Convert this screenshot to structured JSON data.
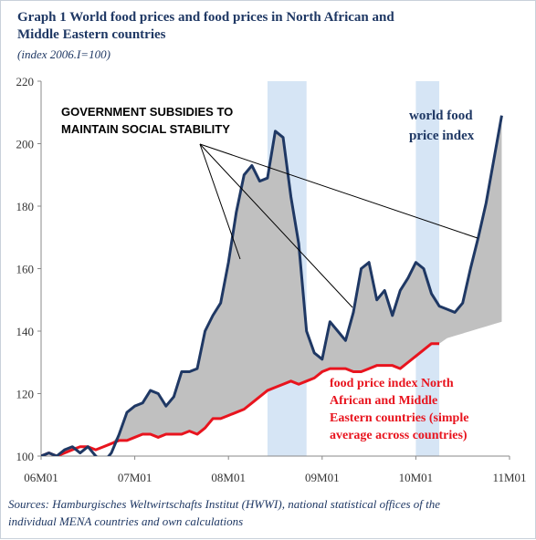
{
  "header": {
    "title_line1": "Graph 1  World food prices and food prices in North African and",
    "title_line2": "Middle Eastern countries",
    "subtitle": "(index 2006.I=100)"
  },
  "source": {
    "line1": "Sources: Hamburgisches Weltwirtschafts Institut (HWWI), national statistical offices of the",
    "line2": "individual MENA countries and own calculations"
  },
  "annotations": {
    "subsidies_line1": "GOVERNMENT SUBSIDIES TO",
    "subsidies_line2": "MAINTAIN SOCIAL STABILITY",
    "world_line1": "world food",
    "world_line2": "price index",
    "mena_line1": "food price index North",
    "mena_line2": "African and Middle",
    "mena_line3": "Eastern countries (simple",
    "mena_line4": "average across countries)"
  },
  "colors": {
    "world": "#1f3864",
    "mena": "#e8141e",
    "gap_fill": "#c0c0c0",
    "shade": "#cfe0f3"
  },
  "chart_data": {
    "type": "line",
    "title": "Graph 1  World food prices and food prices in North African and Middle Eastern countries",
    "subtitle": "(index 2006.I=100)",
    "x_unit": "month",
    "xlim": [
      "2006-01",
      "2011-01"
    ],
    "ylim": [
      100,
      220
    ],
    "y_ticks": [
      100,
      120,
      140,
      160,
      180,
      200,
      220
    ],
    "x_ticks": [
      "06M01",
      "07M01",
      "08M01",
      "09M01",
      "10M01",
      "11M01"
    ],
    "x_tick_positions": [
      "2006-01",
      "2007-01",
      "2008-01",
      "2009-01",
      "2010-01",
      "2011-01"
    ],
    "grid": false,
    "shaded_periods": [
      {
        "start": "2008-06",
        "end": "2008-11"
      },
      {
        "start": "2010-01",
        "end": "2010-04"
      }
    ],
    "series": [
      {
        "name": "world food price index",
        "x": [
          "2006-01",
          "2006-02",
          "2006-03",
          "2006-04",
          "2006-05",
          "2006-06",
          "2006-07",
          "2006-08",
          "2006-09",
          "2006-10",
          "2006-11",
          "2006-12",
          "2007-01",
          "2007-02",
          "2007-03",
          "2007-04",
          "2007-05",
          "2007-06",
          "2007-07",
          "2007-08",
          "2007-09",
          "2007-10",
          "2007-11",
          "2007-12",
          "2008-01",
          "2008-02",
          "2008-03",
          "2008-04",
          "2008-05",
          "2008-06",
          "2008-07",
          "2008-08",
          "2008-09",
          "2008-10",
          "2008-11",
          "2008-12",
          "2009-01",
          "2009-02",
          "2009-03",
          "2009-04",
          "2009-05",
          "2009-06",
          "2009-07",
          "2009-08",
          "2009-09",
          "2009-10",
          "2009-11",
          "2009-12",
          "2010-01",
          "2010-02",
          "2010-03",
          "2010-04",
          "2010-05",
          "2010-06",
          "2010-07",
          "2010-08",
          "2010-09",
          "2010-10"
        ],
        "values": [
          100,
          101,
          100,
          102,
          103,
          101,
          103,
          100,
          98,
          101,
          107,
          114,
          116,
          117,
          121,
          120,
          116,
          119,
          127,
          127,
          128,
          140,
          145,
          149,
          162,
          178,
          190,
          193,
          188,
          189,
          204,
          202,
          183,
          168,
          140,
          133,
          131,
          143,
          140,
          137,
          146,
          160,
          162,
          150,
          153,
          145,
          153,
          157,
          162,
          160,
          152,
          148,
          147,
          146,
          149,
          160,
          170,
          181
        ],
        "values_tail": {
          "x": [
            "2010-11",
            "2010-12"
          ],
          "values": [
            195,
            209
          ]
        }
      },
      {
        "name": "food price index North African and Middle Eastern countries (simple average across countries)",
        "x": [
          "2006-01",
          "2006-02",
          "2006-03",
          "2006-04",
          "2006-05",
          "2006-06",
          "2006-07",
          "2006-08",
          "2006-09",
          "2006-10",
          "2006-11",
          "2006-12",
          "2007-01",
          "2007-02",
          "2007-03",
          "2007-04",
          "2007-05",
          "2007-06",
          "2007-07",
          "2007-08",
          "2007-09",
          "2007-10",
          "2007-11",
          "2007-12",
          "2008-01",
          "2008-02",
          "2008-03",
          "2008-04",
          "2008-05",
          "2008-06",
          "2008-07",
          "2008-08",
          "2008-09",
          "2008-10",
          "2008-11",
          "2008-12",
          "2009-01",
          "2009-02",
          "2009-03",
          "2009-04",
          "2009-05",
          "2009-06",
          "2009-07",
          "2009-08",
          "2009-09",
          "2009-10",
          "2009-11",
          "2009-12",
          "2010-01",
          "2010-02",
          "2010-03",
          "2010-04"
        ],
        "values": [
          100,
          101,
          100,
          101,
          102,
          103,
          103,
          102,
          103,
          104,
          105,
          105,
          106,
          107,
          107,
          106,
          107,
          107,
          107,
          108,
          107,
          109,
          112,
          112,
          113,
          114,
          115,
          117,
          119,
          121,
          122,
          123,
          124,
          123,
          124,
          125,
          127,
          128,
          128,
          128,
          127,
          127,
          128,
          129,
          129,
          129,
          128,
          130,
          132,
          134,
          136,
          136
        ]
      }
    ],
    "extrapolated_lower_bound": {
      "x": [
        "2010-04",
        "2010-12"
      ],
      "values": [
        137,
        143
      ]
    }
  }
}
